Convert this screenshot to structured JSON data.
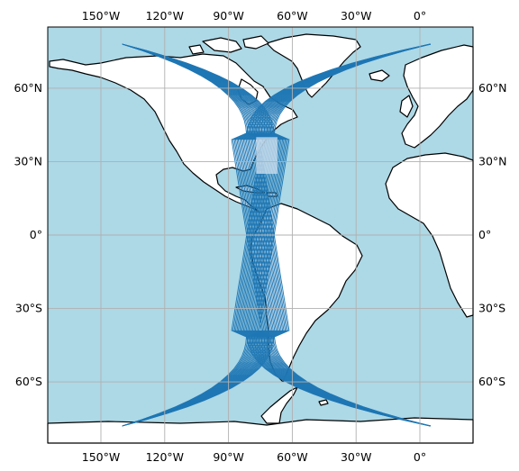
{
  "map": {
    "projection": "PlateCarree",
    "extent": {
      "lon": [
        -175,
        25
      ],
      "lat": [
        -85,
        85
      ]
    },
    "colors": {
      "ocean": "#add8e6",
      "land": "#ffffff",
      "coastline": "#000000",
      "gridline": "#b0b0b0",
      "track": "#1f77b4",
      "highlight_box": "#c8dcec"
    },
    "gridlines": true,
    "lon_ticks": [
      {
        "value": -150,
        "label": "150°W"
      },
      {
        "value": -120,
        "label": "120°W"
      },
      {
        "value": -90,
        "label": "90°W"
      },
      {
        "value": -60,
        "label": "60°W"
      },
      {
        "value": -30,
        "label": "30°W"
      },
      {
        "value": 0,
        "label": "0°"
      }
    ],
    "lat_ticks": [
      {
        "value": 60,
        "label": "60°N"
      },
      {
        "value": 30,
        "label": "30°N"
      },
      {
        "value": 0,
        "label": "0°"
      },
      {
        "value": -30,
        "label": "30°S"
      },
      {
        "value": -60,
        "label": "60°S"
      }
    ],
    "highlight_box": {
      "lon": [
        -77,
        -67
      ],
      "lat": [
        25,
        40
      ]
    },
    "track_bundles": [
      {
        "from": [
          -140,
          78
        ],
        "to": [
          5,
          -78
        ],
        "count": 22,
        "lon_spread": 13
      },
      {
        "from": [
          5,
          78
        ],
        "to": [
          -140,
          -78
        ],
        "count": 22,
        "lon_spread": 13
      }
    ]
  }
}
